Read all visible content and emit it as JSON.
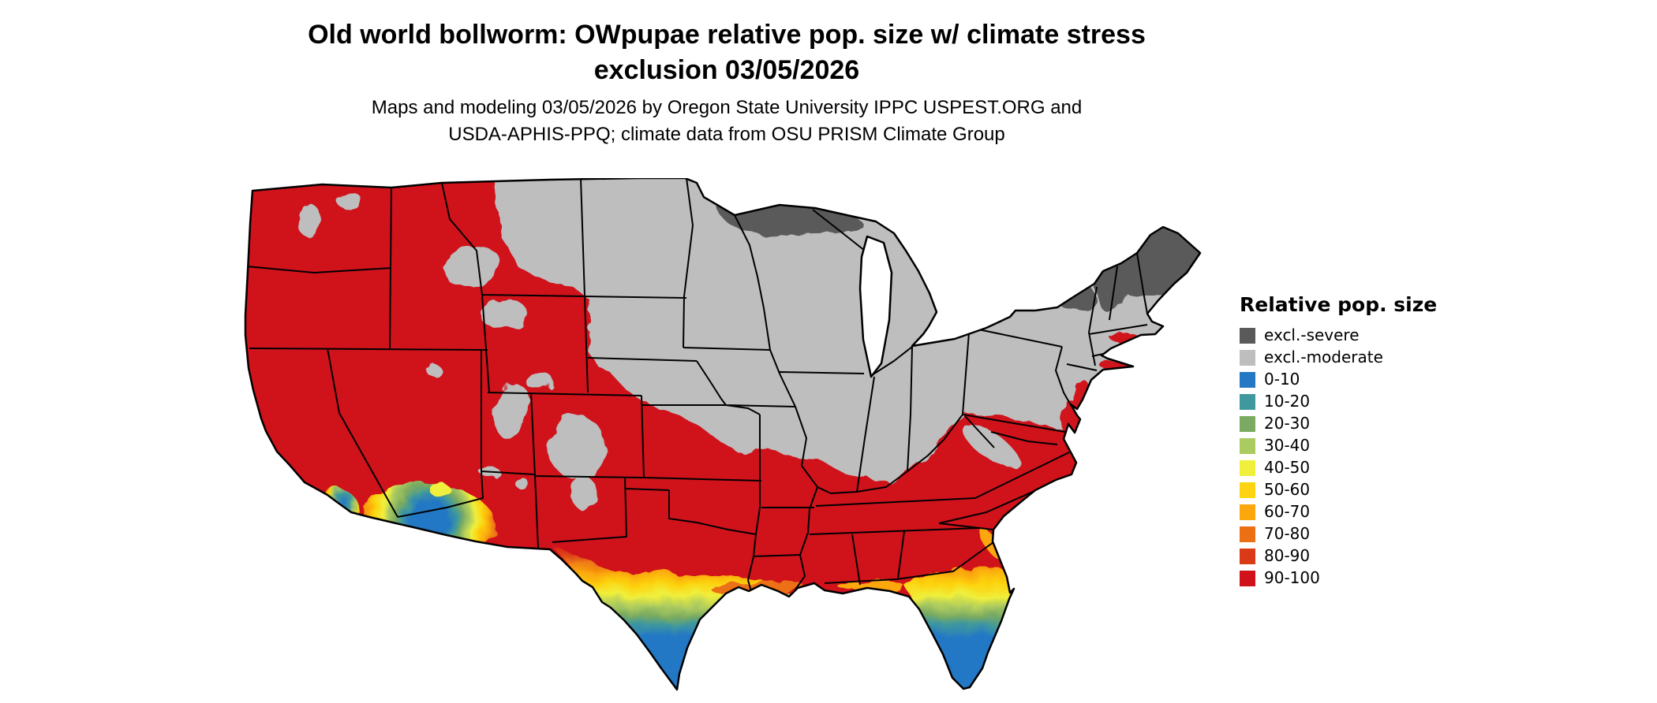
{
  "header": {
    "title_line1": "Old world bollworm: OWpupae relative pop. size w/ climate stress",
    "title_line2": "exclusion 03/05/2026",
    "subtitle_line1": "Maps and modeling 03/05/2026 by Oregon State University IPPC USPEST.ORG and",
    "subtitle_line2": "USDA-APHIS-PPQ; climate data from OSU PRISM Climate Group"
  },
  "legend": {
    "title": "Relative pop. size",
    "items": [
      {
        "label": "excl.-severe",
        "color": "#5a5a5a"
      },
      {
        "label": "excl.-moderate",
        "color": "#bebebe"
      },
      {
        "label": "0-10",
        "color": "#2478c4"
      },
      {
        "label": "10-20",
        "color": "#3f989e"
      },
      {
        "label": "20-30",
        "color": "#7bab60"
      },
      {
        "label": "30-40",
        "color": "#abca5f"
      },
      {
        "label": "40-50",
        "color": "#f0ef3c"
      },
      {
        "label": "50-60",
        "color": "#fcd411"
      },
      {
        "label": "60-70",
        "color": "#fba70e"
      },
      {
        "label": "70-80",
        "color": "#eb7014"
      },
      {
        "label": "80-90",
        "color": "#da3a17"
      },
      {
        "label": "90-100",
        "color": "#d0121b"
      }
    ]
  },
  "map": {
    "region": "Continental United States",
    "severe_exclusion_visible_in": "northern Minnesota, upper Great Lakes, Adirondacks, northern New England",
    "moderate_exclusion_visible_in": "northern plains, upper Midwest, Northeast, Rocky Mountain highlands",
    "high_population_visible_in": "West, Southwest, southern plains, South, Southeast, mid-Atlantic coast",
    "gradient_zones_visible_in": "south Texas, peninsular Florida, southern Arizona and southern California"
  }
}
